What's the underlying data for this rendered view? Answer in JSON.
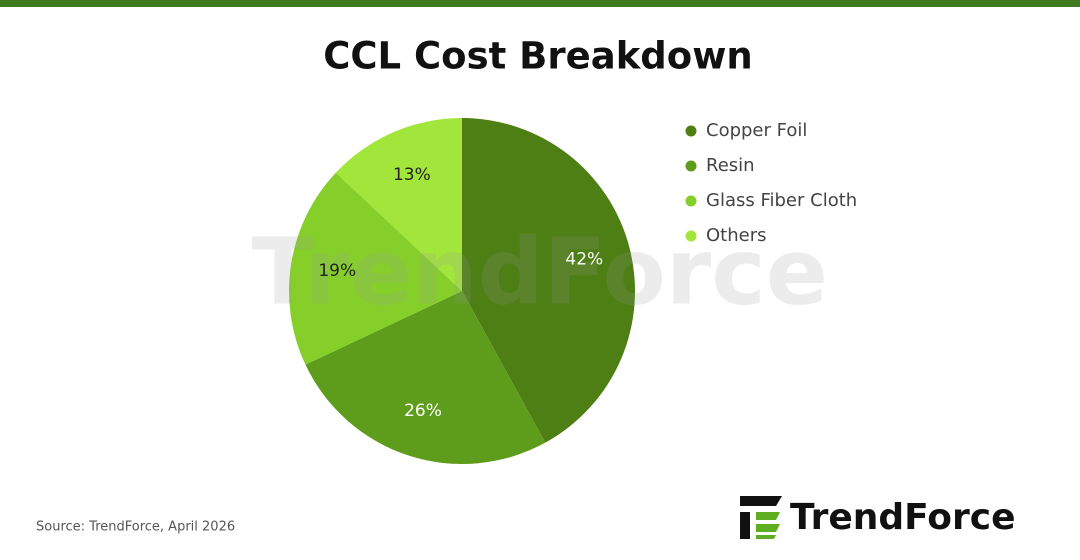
{
  "chart_data": {
    "type": "pie",
    "title": "CCL Cost Breakdown",
    "categories": [
      "Copper Foil",
      "Resin",
      "Glass Fiber Cloth",
      "Others"
    ],
    "values": [
      42,
      26,
      19,
      13
    ],
    "value_labels": [
      "42%",
      "26%",
      "19%",
      "13%"
    ],
    "colors": [
      "#4d7f14",
      "#5e9d1b",
      "#86cf2b",
      "#a3e63b"
    ],
    "legend": "right",
    "source": "Source: TrendForce, April 2026",
    "watermark": "TrendForce",
    "logo": "TrendForce"
  }
}
